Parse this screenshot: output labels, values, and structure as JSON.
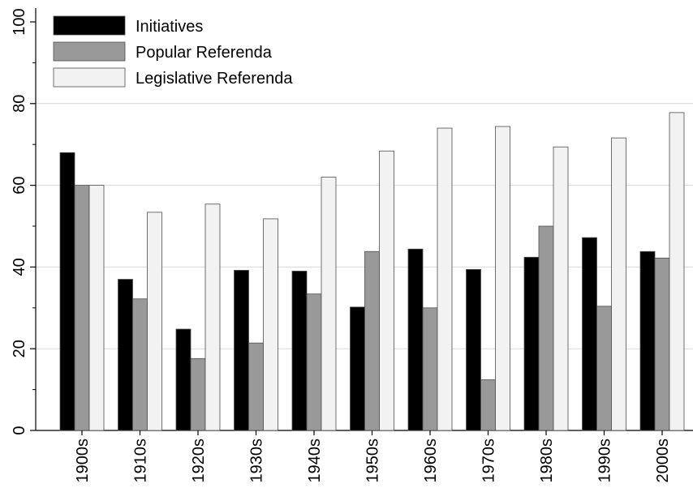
{
  "chart_data": {
    "type": "bar",
    "categories": [
      "1900s",
      "1910s",
      "1920s",
      "1930s",
      "1940s",
      "1950s",
      "1960s",
      "1970s",
      "1980s",
      "1990s",
      "2000s"
    ],
    "series": [
      {
        "name": "Initiatives",
        "color": "#000000",
        "values": [
          68,
          37,
          24.8,
          39.2,
          39,
          30.2,
          44.4,
          39.4,
          42.4,
          47.2,
          43.8
        ]
      },
      {
        "name": "Popular Referenda",
        "color": "#999999",
        "values": [
          60,
          32.2,
          17.6,
          21.4,
          33.4,
          43.8,
          30,
          12.4,
          50,
          30.4,
          42.2
        ]
      },
      {
        "name": "Legislative Referenda",
        "color": "#f2f2f2",
        "values": [
          60,
          53.4,
          55.4,
          51.8,
          62,
          68.4,
          74,
          74.4,
          69.4,
          71.6,
          77.8
        ]
      }
    ],
    "yticks": [
      "0",
      "20",
      "40",
      "60",
      "80",
      "100"
    ],
    "ylim": [
      0,
      100
    ],
    "xlabel": "",
    "ylabel": "",
    "title": "",
    "grid": "horizontal",
    "legend_position": "top-left"
  }
}
